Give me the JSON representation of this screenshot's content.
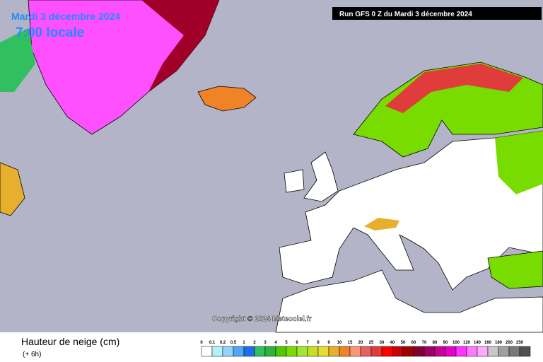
{
  "header": {
    "date": "Mardi 3 décembre 2024",
    "time": "7:00 locale",
    "run": "Run GFS 0 Z du Mardi 3 décembre 2024"
  },
  "copyright": "Copyright © 2024 Meteociel.fr",
  "legend": {
    "title": "Hauteur de neige (cm)",
    "subtitle": "(+ 6h)",
    "labels": [
      "0",
      "0.1",
      "0.2",
      "0.5",
      "1",
      "2",
      "3",
      "4",
      "5",
      "6",
      "7",
      "8",
      "9",
      "10",
      "15",
      "20",
      "25",
      "30",
      "40",
      "50",
      "60",
      "70",
      "80",
      "90",
      "100",
      "120",
      "140",
      "160",
      "180",
      "200",
      "250"
    ],
    "colors": [
      "#ffffff",
      "#b4f0fa",
      "#96d2fa",
      "#50a5f5",
      "#1e6eeb",
      "#30c060",
      "#2db43c",
      "#50c800",
      "#78dc00",
      "#a0e632",
      "#c8dc28",
      "#e6dc32",
      "#e6af2d",
      "#f08228",
      "#fa9678",
      "#e86060",
      "#e03c3c",
      "#ff0000",
      "#c80000",
      "#a00000",
      "#820032",
      "#a00064",
      "#c80096",
      "#e600c8",
      "#ff32ff",
      "#ff78ff",
      "#ffaaff",
      "#c8c8c8",
      "#a0a0a0",
      "#787878",
      "#505050"
    ]
  }
}
